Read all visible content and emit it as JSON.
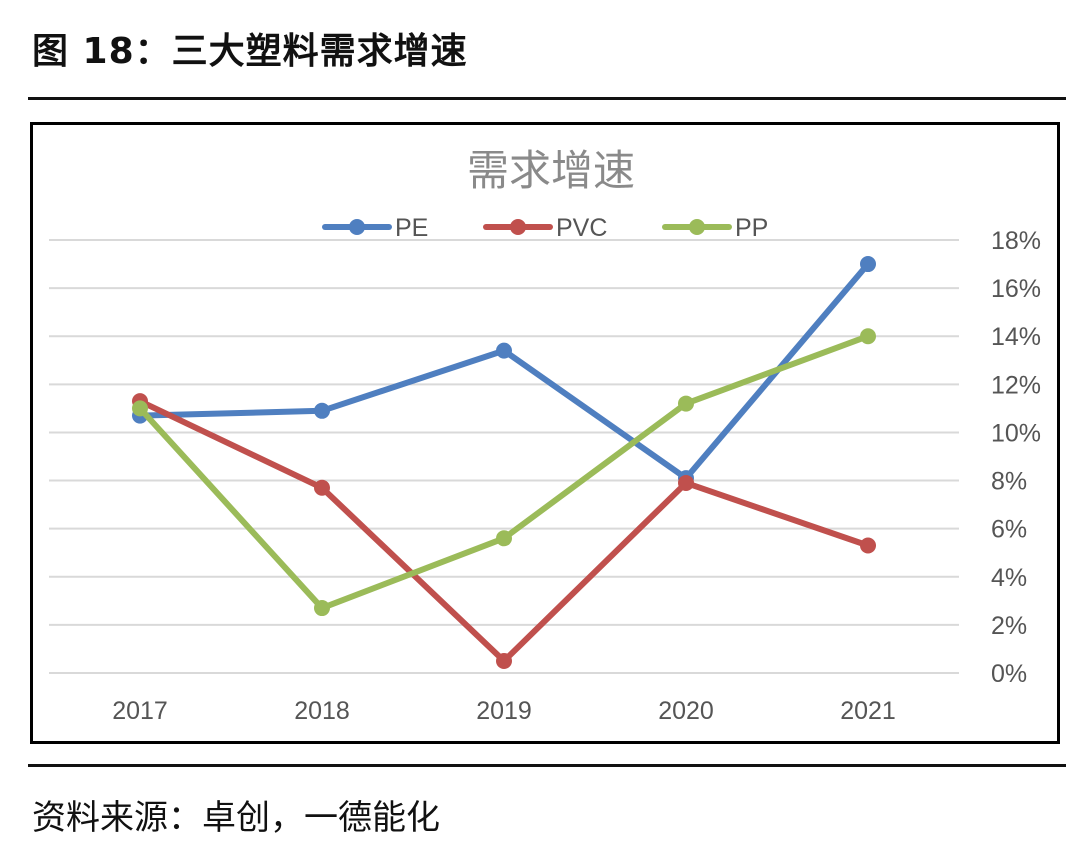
{
  "figure": {
    "title": "图 18：三大塑料需求增速",
    "source": "资料来源：卓创，一德能化"
  },
  "chart_data": {
    "type": "line",
    "title": "需求增速",
    "categories": [
      "2017",
      "2018",
      "2019",
      "2020",
      "2021"
    ],
    "series": [
      {
        "name": "PE",
        "color": "#4f7fc0",
        "values": [
          10.7,
          10.9,
          13.4,
          8.1,
          17.0
        ]
      },
      {
        "name": "PVC",
        "color": "#c0504d",
        "values": [
          11.3,
          7.7,
          0.5,
          7.9,
          5.3
        ]
      },
      {
        "name": "PP",
        "color": "#9bbb59",
        "values": [
          11.0,
          2.7,
          5.6,
          11.2,
          14.0
        ]
      }
    ],
    "ylim": [
      0,
      18
    ],
    "yticks": [
      "0%",
      "2%",
      "4%",
      "6%",
      "8%",
      "10%",
      "12%",
      "14%",
      "16%",
      "18%"
    ],
    "y_axis_side": "right",
    "grid": true,
    "legend": "top"
  }
}
